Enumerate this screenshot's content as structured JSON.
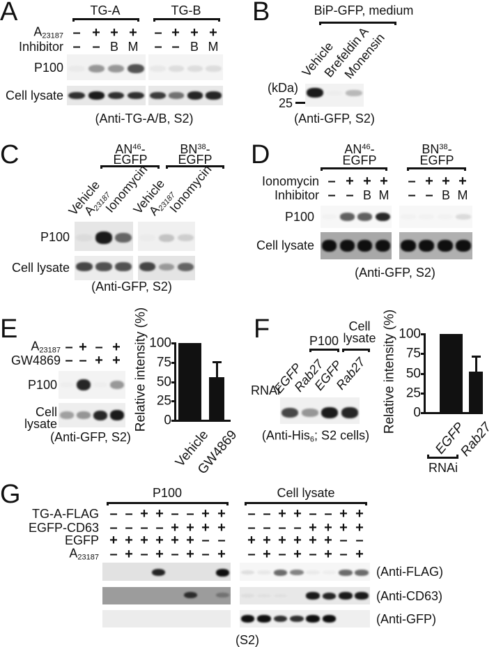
{
  "panels": {
    "A": {
      "letter": "A",
      "groups": [
        "TG-A",
        "TG-B"
      ],
      "rows": [
        {
          "name": "A",
          "sub": "23187",
          "signs": [
            "–",
            "+",
            "+",
            "+",
            "–",
            "+",
            "+",
            "+"
          ]
        },
        {
          "name": "Inhibitor",
          "signs": [
            "–",
            "–",
            "B",
            "M",
            "–",
            "–",
            "B",
            "M"
          ]
        }
      ],
      "p100_label": "P100",
      "lysate_label": "Cell lysate",
      "caption": "(Anti-TG-A/B, S2)",
      "band_intensity": {
        "p100_tga": [
          0.03,
          0.4,
          0.4,
          0.7
        ],
        "p100_tgb": [
          0.05,
          0.1,
          0.1,
          0.1
        ],
        "lysate_tga": [
          0.85,
          0.95,
          0.85,
          0.85
        ],
        "lysate_tgb": [
          0.8,
          0.55,
          0.9,
          0.9
        ]
      }
    },
    "B": {
      "letter": "B",
      "title": "BiP-GFP, medium",
      "lanes": [
        "Vehicle",
        "Brefeldin A",
        "Monensin"
      ],
      "unit": "(kDa)",
      "marker": "25",
      "caption": "(Anti-GFP, S2)",
      "band_intensity": [
        0.95,
        0.02,
        0.25
      ]
    },
    "C": {
      "letter": "C",
      "groups": [
        {
          "name": "AN",
          "sup": "46",
          "suffix": "-",
          "line2": "EGFP"
        },
        {
          "name": "BN",
          "sup": "38",
          "suffix": "-",
          "line2": "EGFP"
        }
      ],
      "lanes": [
        {
          "text": "Vehicle"
        },
        {
          "text": "A",
          "sub": "23187"
        },
        {
          "text": "Ionomycin"
        },
        {
          "text": "Vehicle"
        },
        {
          "text": "A",
          "sub": "23187"
        },
        {
          "text": "Ionomycin"
        }
      ],
      "p100_label": "P100",
      "lysate_label": "Cell lysate",
      "caption": "(Anti-GFP, S2)",
      "band_intensity": {
        "p100_an": [
          0.05,
          0.95,
          0.6
        ],
        "p100_bn": [
          0.02,
          0.2,
          0.15
        ],
        "lysate_an": [
          0.75,
          0.7,
          0.7
        ],
        "lysate_bn": [
          0.75,
          0.35,
          0.6
        ]
      }
    },
    "D": {
      "letter": "D",
      "groups": [
        {
          "name": "AN",
          "sup": "46",
          "suffix": "-",
          "line2": "EGFP"
        },
        {
          "name": "BN",
          "sup": "38",
          "suffix": "-",
          "line2": "EGFP"
        }
      ],
      "rows": [
        {
          "name": "Ionomycin",
          "signs": [
            "–",
            "+",
            "+",
            "+",
            "–",
            "+",
            "+",
            "+"
          ]
        },
        {
          "name": "Inhibitor",
          "signs": [
            "–",
            "–",
            "B",
            "M",
            "–",
            "–",
            "B",
            "M"
          ]
        }
      ],
      "p100_label": "P100",
      "lysate_label": "Cell lysate",
      "caption": "(Anti-GFP, S2)",
      "band_intensity": {
        "p100_an": [
          0.02,
          0.65,
          0.65,
          0.9
        ],
        "p100_bn": [
          0.02,
          0.02,
          0.02,
          0.12
        ],
        "lysate_an": [
          1,
          1,
          1,
          1
        ],
        "lysate_bn": [
          1,
          1,
          1,
          1
        ]
      }
    },
    "E": {
      "letter": "E",
      "rows": [
        {
          "name": "A",
          "sub": "23187",
          "signs": [
            "–",
            "+",
            "–",
            "+"
          ]
        },
        {
          "name": "GW4869",
          "signs": [
            "–",
            "–",
            "+",
            "+"
          ]
        }
      ],
      "p100_label": "P100",
      "lysate_label": "Cell lysate",
      "caption": "(Anti-GFP, S2)",
      "band_intensity": {
        "p100": [
          0.02,
          0.9,
          0.02,
          0.4
        ],
        "lysate": [
          0.35,
          0.4,
          0.9,
          0.95
        ]
      }
    },
    "F": {
      "letter": "F",
      "groups": [
        "P100",
        "Cell lysate"
      ],
      "row_label": "RNAi",
      "lanes": [
        "EGFP",
        "Rab27",
        "EGFP",
        "Rab27"
      ],
      "caption_pre": "(Anti-His",
      "caption_sub": "6",
      "caption_post": "; S2 cells)",
      "band_intensity": [
        0.75,
        0.4,
        0.95,
        0.9
      ]
    },
    "G": {
      "letter": "G",
      "groups": [
        "P100",
        "Cell lysate"
      ],
      "rows": [
        {
          "name": "TG-A-FLAG",
          "signs": [
            "–",
            "–",
            "+",
            "+",
            "–",
            "–",
            "+",
            "+",
            "–",
            "–",
            "+",
            "+",
            "–",
            "–",
            "+",
            "+"
          ]
        },
        {
          "name": "EGFP-CD63",
          "signs": [
            "–",
            "–",
            "–",
            "–",
            "+",
            "+",
            "+",
            "+",
            "–",
            "–",
            "–",
            "–",
            "+",
            "+",
            "+",
            "+"
          ]
        },
        {
          "name": "EGFP",
          "signs": [
            "+",
            "+",
            "+",
            "+",
            "+",
            "+",
            "–",
            "–",
            "+",
            "+",
            "+",
            "+",
            "+",
            "+",
            "–",
            "–"
          ]
        },
        {
          "name": "A",
          "sub": "23187",
          "signs": [
            "–",
            "+",
            "–",
            "+",
            "–",
            "+",
            "–",
            "+",
            "–",
            "+",
            "–",
            "+",
            "–",
            "+",
            "–",
            "+"
          ]
        }
      ],
      "antibodies": [
        "(Anti-FLAG)",
        "(Anti-CD63)",
        "(Anti-GFP)"
      ],
      "caption": "(S2)",
      "band_intensity": {
        "flag_p100": [
          0,
          0,
          0,
          0.9,
          0,
          0,
          0,
          1
        ],
        "flag_lysate": [
          0.1,
          0.06,
          0.6,
          0.5,
          0.05,
          0.03,
          0.6,
          0.6
        ],
        "cd63_p100": [
          0,
          0,
          0,
          0,
          0,
          0.8,
          0,
          0.3
        ],
        "cd63_lysate": [
          0.05,
          0.03,
          0.03,
          0,
          0.95,
          0.9,
          0.95,
          0.95
        ],
        "gfp_p100": [
          0,
          0,
          0,
          0,
          0,
          0,
          0,
          0
        ],
        "gfp_lysate": [
          1,
          1,
          0.85,
          0.85,
          1,
          1,
          0,
          0
        ]
      }
    }
  },
  "chart_data": [
    {
      "type": "bar",
      "panel": "E",
      "categories": [
        "Vehicle",
        "GW4869"
      ],
      "values": [
        100,
        56
      ],
      "error_upper": [
        0,
        20
      ],
      "ylabel": "Relative intensity (%)",
      "yticks": [
        0,
        25,
        50,
        75,
        100
      ],
      "ylim": [
        0,
        100
      ],
      "bar_color": "#111111"
    },
    {
      "type": "bar",
      "panel": "F",
      "categories": [
        "EGFP",
        "Rab27"
      ],
      "values": [
        100,
        52
      ],
      "error_upper": [
        0,
        20
      ],
      "ylabel": "Relative intensity (%)",
      "yticks": [
        0,
        25,
        50,
        75,
        100
      ],
      "ylim": [
        0,
        100
      ],
      "group_label": "RNAi",
      "bar_color": "#111111"
    }
  ]
}
